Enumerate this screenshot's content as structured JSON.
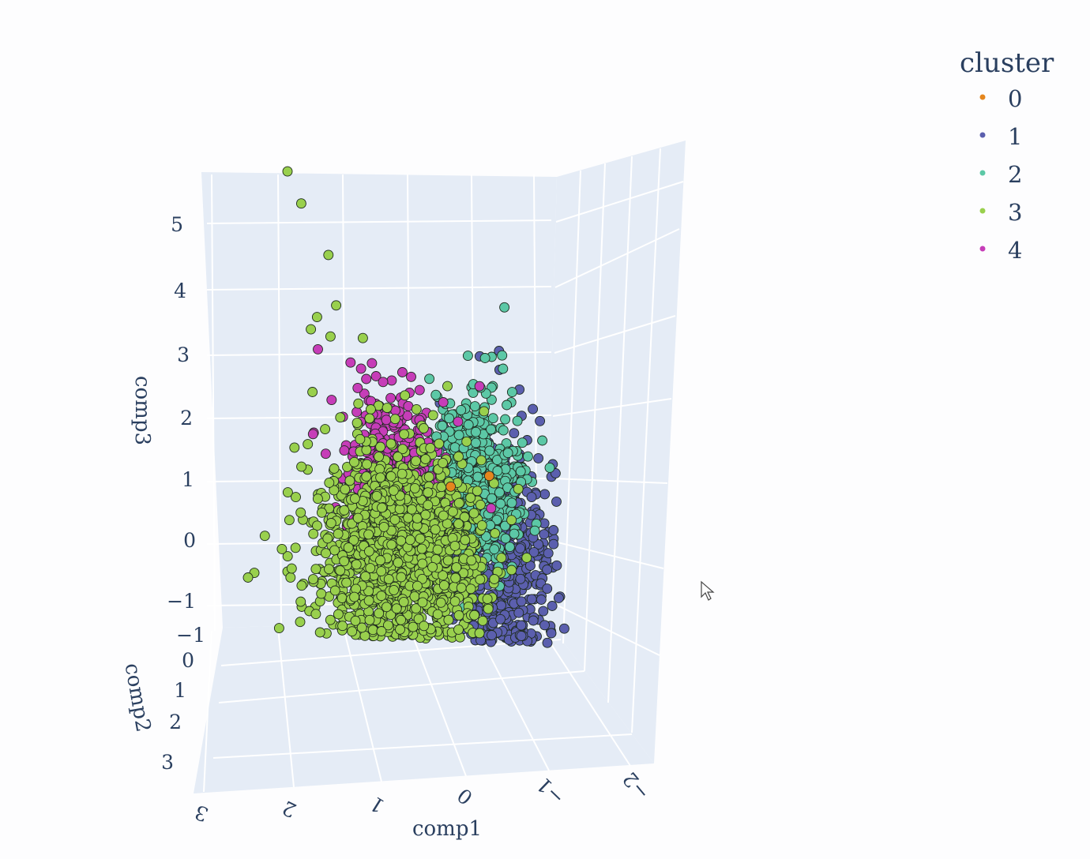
{
  "chart_data": {
    "type": "scatter",
    "subtype": "3d-scatter",
    "axes": {
      "x": {
        "label": "comp1",
        "ticks": [
          "3",
          "2",
          "1",
          "0",
          "−1",
          "−2"
        ]
      },
      "y": {
        "label": "comp2",
        "ticks": [
          "−1",
          "0",
          "1",
          "2",
          "3"
        ]
      },
      "z": {
        "label": "comp3",
        "ticks": [
          "−1",
          "0",
          "1",
          "2",
          "3",
          "4",
          "5"
        ]
      }
    },
    "legend": {
      "title": "cluster",
      "placement": "top-right",
      "items": [
        {
          "name": "0",
          "color": "#E5861D"
        },
        {
          "name": "1",
          "color": "#5B5FAE"
        },
        {
          "name": "2",
          "color": "#5CC8A6"
        },
        {
          "name": "3",
          "color": "#99D04D"
        },
        {
          "name": "4",
          "color": "#C63DB8"
        }
      ]
    },
    "series": [
      {
        "name": "0",
        "color": "#E5861D",
        "points": [
          [
            0.3,
            0,
            0.9
          ],
          [
            -0.3,
            0,
            1.1
          ]
        ]
      },
      {
        "name": "1",
        "color": "#5B5FAE",
        "points": [
          [
            0.4,
            0,
            1.9
          ],
          [
            0.2,
            0,
            1.7
          ],
          [
            -0.2,
            0,
            3.0
          ],
          [
            -0.5,
            0,
            3.1
          ],
          [
            -0.5,
            0,
            2.8
          ],
          [
            -0.8,
            0,
            2.5
          ],
          [
            -1.0,
            0,
            2.2
          ],
          [
            -0.9,
            0,
            1.7
          ],
          [
            -0.7,
            0,
            1.8
          ],
          [
            -0.5,
            0,
            1.2
          ],
          [
            -0.7,
            0,
            0.3
          ],
          [
            -0.9,
            0,
            -0.3
          ],
          [
            -0.3,
            0,
            -1.0
          ],
          [
            0.0,
            0,
            -1.3
          ]
        ],
        "cloud": {
          "count": 620,
          "center": [
            -0.45,
            0,
            -0.2
          ],
          "spread": [
            0.38,
            0,
            0.85
          ]
        }
      },
      {
        "name": "2",
        "color": "#5CC8A6",
        "points": [
          [
            -0.6,
            0,
            3.8
          ],
          [
            0.8,
            0,
            1.3
          ],
          [
            0.6,
            0,
            1.0
          ],
          [
            -0.2,
            0,
            2.5
          ],
          [
            0.0,
            0,
            1.9
          ]
        ],
        "cloud": {
          "count": 520,
          "center": [
            -0.1,
            0,
            1.1
          ],
          "spread": [
            0.35,
            0,
            0.65
          ]
        }
      },
      {
        "name": "3",
        "color": "#99D04D",
        "points": [
          [
            2.7,
            0,
            5.8
          ],
          [
            2.5,
            0,
            5.3
          ],
          [
            2.1,
            0,
            4.5
          ],
          [
            2.0,
            0,
            3.7
          ],
          [
            2.3,
            0,
            3.5
          ],
          [
            1.6,
            0,
            3.2
          ],
          [
            2.1,
            0,
            3.2
          ],
          [
            2.4,
            0,
            3.3
          ],
          [
            2.7,
            0,
            1.4
          ],
          [
            2.6,
            0,
            1.1
          ],
          [
            1.0,
            0,
            1.7
          ],
          [
            0.6,
            0,
            1.5
          ],
          [
            2.4,
            0,
            2.3
          ]
        ],
        "cloud": {
          "count": 1500,
          "center": [
            1.1,
            0,
            -0.2
          ],
          "spread": [
            0.6,
            0,
            0.8
          ]
        }
      },
      {
        "name": "4",
        "color": "#C63DB8",
        "points": [
          [
            1.8,
            0,
            2.8
          ],
          [
            1.7,
            0,
            2.4
          ],
          [
            1.5,
            0,
            2.2
          ]
        ],
        "cloud": {
          "count": 520,
          "center": [
            1.2,
            0,
            0.9
          ],
          "spread": [
            0.38,
            0,
            0.7
          ]
        }
      }
    ]
  }
}
